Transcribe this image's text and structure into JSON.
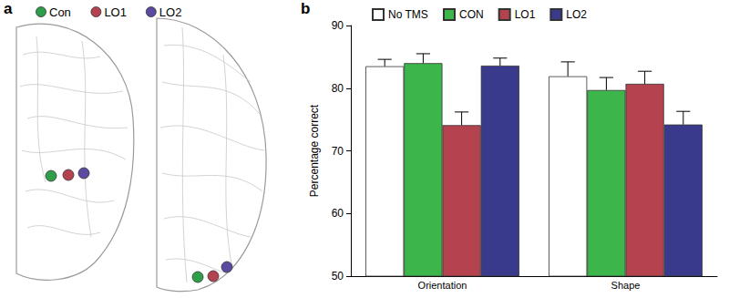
{
  "panel_a": {
    "letter": "a",
    "legend": [
      {
        "name": "Con",
        "color": "#2e9e4a"
      },
      {
        "name": "LO1",
        "color": "#b5434f"
      },
      {
        "name": "LO2",
        "color": "#5b4aa0"
      }
    ]
  },
  "chart_data": {
    "letter": "b",
    "type": "bar",
    "ylabel": "Percentage correct",
    "categories": [
      "Orientation",
      "Shape"
    ],
    "series": [
      {
        "name": "No TMS",
        "color": "#ffffff",
        "values": [
          83.5,
          81.9
        ],
        "errors": [
          1.1,
          2.3
        ]
      },
      {
        "name": "CON",
        "color": "#3cb54a",
        "values": [
          84.0,
          79.7
        ],
        "errors": [
          1.5,
          2.0
        ]
      },
      {
        "name": "LO1",
        "color": "#b5434f",
        "values": [
          74.1,
          80.7
        ],
        "errors": [
          2.1,
          2.0
        ]
      },
      {
        "name": "LO2",
        "color": "#3a3a8c",
        "values": [
          83.6,
          74.2
        ],
        "errors": [
          1.2,
          2.1
        ]
      }
    ],
    "ylim": [
      50,
      90
    ],
    "yticks": [
      50,
      60,
      70,
      80,
      90
    ],
    "grid": false,
    "legend": "top"
  }
}
